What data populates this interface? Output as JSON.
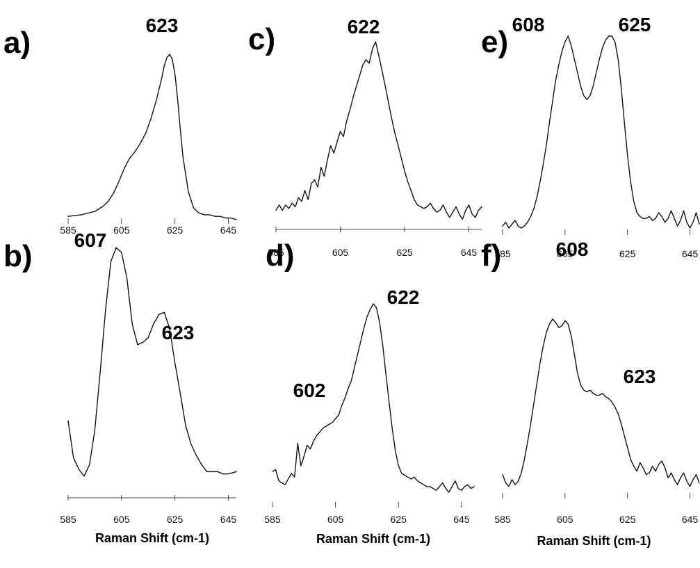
{
  "chart_data": [
    {
      "type": "line",
      "panel": "a)",
      "x_ticks": [
        585,
        605,
        625,
        645
      ],
      "xlim": [
        585,
        648
      ],
      "axis_line": false,
      "annotations": [
        {
          "text": "623",
          "x": 623
        }
      ],
      "series": [
        {
          "x": [
            585,
            590,
            595,
            598,
            600,
            602,
            604,
            606,
            608,
            610,
            612,
            614,
            616,
            618,
            620,
            621,
            622,
            623,
            624,
            625,
            626,
            627,
            628,
            630,
            632,
            634,
            636,
            638,
            640,
            642,
            644,
            646,
            648
          ],
          "y": [
            0.02,
            0.03,
            0.05,
            0.08,
            0.11,
            0.16,
            0.23,
            0.31,
            0.37,
            0.41,
            0.46,
            0.52,
            0.61,
            0.72,
            0.85,
            0.93,
            0.98,
            1.0,
            0.97,
            0.88,
            0.73,
            0.55,
            0.38,
            0.17,
            0.07,
            0.04,
            0.03,
            0.03,
            0.02,
            0.02,
            0.01,
            0.01,
            0.0
          ]
        }
      ]
    },
    {
      "type": "line",
      "panel": "b)",
      "x_ticks": [
        585,
        605,
        625,
        645
      ],
      "xlim": [
        585,
        648
      ],
      "axis_line": true,
      "xlabel": "Raman Shift (cm-1)",
      "annotations": [
        {
          "text": "607",
          "x": 605
        },
        {
          "text": "623",
          "x": 621
        }
      ],
      "series": [
        {
          "x": [
            585,
            587,
            589,
            591,
            593,
            595,
            597,
            599,
            601,
            603,
            605,
            607,
            609,
            611,
            613,
            615,
            617,
            619,
            621,
            623,
            625,
            627,
            629,
            631,
            633,
            635,
            637,
            639,
            641,
            643,
            645,
            648
          ],
          "y": [
            0.24,
            0.08,
            0.03,
            0.0,
            0.05,
            0.2,
            0.45,
            0.72,
            0.93,
            0.99,
            0.97,
            0.86,
            0.66,
            0.57,
            0.58,
            0.6,
            0.66,
            0.7,
            0.71,
            0.64,
            0.49,
            0.36,
            0.22,
            0.14,
            0.09,
            0.05,
            0.02,
            0.02,
            0.02,
            0.01,
            0.01,
            0.02
          ]
        }
      ]
    },
    {
      "type": "line",
      "panel": "c)",
      "x_ticks": [
        585,
        605,
        625,
        645
      ],
      "xlim": [
        585,
        649
      ],
      "axis_line": true,
      "annotations": [
        {
          "text": "622",
          "x": 620
        }
      ],
      "series": [
        {
          "x": [
            585,
            586,
            587,
            588,
            589,
            590,
            591,
            592,
            593,
            594,
            595,
            596,
            597,
            598,
            599,
            600,
            601,
            602,
            603,
            604,
            605,
            606,
            607,
            608,
            609,
            610,
            611,
            612,
            613,
            614,
            615,
            616,
            617,
            618,
            619,
            620,
            621,
            622,
            623,
            624,
            625,
            626,
            627,
            628,
            629,
            630,
            631,
            632,
            633,
            634,
            635,
            636,
            637,
            638,
            639,
            640,
            641,
            642,
            643,
            644,
            645,
            646,
            647,
            648,
            649
          ],
          "y": [
            0.06,
            0.09,
            0.06,
            0.09,
            0.07,
            0.1,
            0.08,
            0.13,
            0.11,
            0.17,
            0.12,
            0.21,
            0.23,
            0.19,
            0.3,
            0.25,
            0.34,
            0.42,
            0.38,
            0.44,
            0.5,
            0.47,
            0.56,
            0.62,
            0.69,
            0.75,
            0.81,
            0.87,
            0.9,
            0.88,
            0.96,
            1.0,
            0.92,
            0.84,
            0.75,
            0.66,
            0.57,
            0.49,
            0.42,
            0.35,
            0.28,
            0.22,
            0.17,
            0.12,
            0.09,
            0.08,
            0.07,
            0.08,
            0.1,
            0.07,
            0.05,
            0.06,
            0.09,
            0.05,
            0.02,
            0.05,
            0.08,
            0.04,
            0.01,
            0.06,
            0.09,
            0.04,
            0.02,
            0.06,
            0.08
          ]
        }
      ]
    },
    {
      "type": "line",
      "panel": "d)",
      "x_ticks": [
        585,
        605,
        625,
        645
      ],
      "xlim": [
        585,
        649
      ],
      "axis_line": false,
      "xlabel": "Raman Shift (cm-1)",
      "annotations": [
        {
          "text": "602",
          "x": 601
        },
        {
          "text": "622",
          "x": 622
        }
      ],
      "series": [
        {
          "x": [
            585,
            586,
            587,
            588,
            589,
            590,
            591,
            592,
            593,
            594,
            595,
            596,
            597,
            598,
            599,
            600,
            601,
            602,
            603,
            604,
            605,
            606,
            607,
            608,
            609,
            610,
            611,
            612,
            613,
            614,
            615,
            616,
            617,
            618,
            619,
            620,
            621,
            622,
            623,
            624,
            625,
            626,
            627,
            628,
            629,
            630,
            631,
            632,
            633,
            634,
            635,
            636,
            637,
            638,
            639,
            640,
            641,
            642,
            643,
            644,
            645,
            646,
            647,
            648,
            649
          ],
          "y": [
            0.11,
            0.12,
            0.06,
            0.05,
            0.04,
            0.07,
            0.1,
            0.08,
            0.26,
            0.14,
            0.19,
            0.25,
            0.23,
            0.27,
            0.3,
            0.32,
            0.34,
            0.35,
            0.36,
            0.37,
            0.39,
            0.41,
            0.46,
            0.5,
            0.55,
            0.59,
            0.66,
            0.73,
            0.8,
            0.87,
            0.93,
            0.97,
            1.0,
            0.98,
            0.9,
            0.78,
            0.63,
            0.48,
            0.34,
            0.22,
            0.14,
            0.1,
            0.09,
            0.08,
            0.07,
            0.08,
            0.06,
            0.05,
            0.04,
            0.03,
            0.03,
            0.02,
            0.01,
            0.03,
            0.05,
            0.02,
            0.0,
            0.03,
            0.06,
            0.02,
            0.01,
            0.03,
            0.04,
            0.02,
            0.03
          ]
        }
      ]
    },
    {
      "type": "line",
      "panel": "e)",
      "x_ticks": [
        585,
        605,
        625,
        645
      ],
      "xlim": [
        585,
        648
      ],
      "axis_line": false,
      "annotations": [
        {
          "text": "608",
          "x": 606
        },
        {
          "text": "625",
          "x": 623
        }
      ],
      "series": [
        {
          "x": [
            585,
            586,
            587,
            588,
            589,
            590,
            591,
            592,
            593,
            594,
            595,
            596,
            597,
            598,
            599,
            600,
            601,
            602,
            603,
            604,
            605,
            606,
            607,
            608,
            609,
            610,
            611,
            612,
            613,
            614,
            615,
            616,
            617,
            618,
            619,
            620,
            621,
            622,
            623,
            624,
            625,
            626,
            627,
            628,
            629,
            630,
            631,
            632,
            633,
            634,
            635,
            636,
            637,
            638,
            639,
            640,
            641,
            642,
            643,
            644,
            645,
            646,
            647,
            648
          ],
          "y": [
            0.01,
            0.03,
            0.0,
            0.02,
            0.04,
            0.01,
            0.0,
            0.01,
            0.03,
            0.06,
            0.1,
            0.16,
            0.24,
            0.33,
            0.43,
            0.55,
            0.66,
            0.77,
            0.85,
            0.92,
            0.97,
            1.0,
            0.95,
            0.88,
            0.81,
            0.74,
            0.69,
            0.67,
            0.69,
            0.74,
            0.81,
            0.88,
            0.94,
            0.98,
            1.0,
            1.0,
            0.97,
            0.88,
            0.73,
            0.55,
            0.38,
            0.24,
            0.14,
            0.08,
            0.06,
            0.05,
            0.05,
            0.06,
            0.04,
            0.05,
            0.08,
            0.06,
            0.03,
            0.05,
            0.09,
            0.05,
            0.01,
            0.04,
            0.09,
            0.03,
            0.0,
            0.03,
            0.08,
            0.02
          ]
        }
      ]
    },
    {
      "type": "line",
      "panel": "f)",
      "x_ticks": [
        585,
        605,
        625,
        645
      ],
      "xlim": [
        585,
        648
      ],
      "axis_line": false,
      "xlabel": "Raman Shift (cm-1)",
      "annotations": [
        {
          "text": "608",
          "x": 605
        },
        {
          "text": "623",
          "x": 621
        }
      ],
      "series": [
        {
          "x": [
            585,
            586,
            587,
            588,
            589,
            590,
            591,
            592,
            593,
            594,
            595,
            596,
            597,
            598,
            599,
            600,
            601,
            602,
            603,
            604,
            605,
            606,
            607,
            608,
            609,
            610,
            611,
            612,
            613,
            614,
            615,
            616,
            617,
            618,
            619,
            620,
            621,
            622,
            623,
            624,
            625,
            626,
            627,
            628,
            629,
            630,
            631,
            632,
            633,
            634,
            635,
            636,
            637,
            638,
            639,
            640,
            641,
            642,
            643,
            644,
            645,
            646,
            647,
            648
          ],
          "y": [
            0.08,
            0.03,
            0.01,
            0.05,
            0.02,
            0.04,
            0.09,
            0.17,
            0.27,
            0.38,
            0.5,
            0.62,
            0.74,
            0.84,
            0.92,
            0.97,
            1.0,
            0.98,
            0.95,
            0.96,
            0.99,
            0.97,
            0.9,
            0.79,
            0.68,
            0.61,
            0.58,
            0.57,
            0.58,
            0.56,
            0.55,
            0.55,
            0.56,
            0.54,
            0.53,
            0.51,
            0.48,
            0.44,
            0.38,
            0.31,
            0.24,
            0.17,
            0.13,
            0.1,
            0.15,
            0.12,
            0.08,
            0.09,
            0.13,
            0.1,
            0.14,
            0.16,
            0.12,
            0.06,
            0.09,
            0.05,
            0.02,
            0.06,
            0.09,
            0.04,
            0.01,
            0.05,
            0.08,
            0.03
          ]
        }
      ]
    }
  ]
}
